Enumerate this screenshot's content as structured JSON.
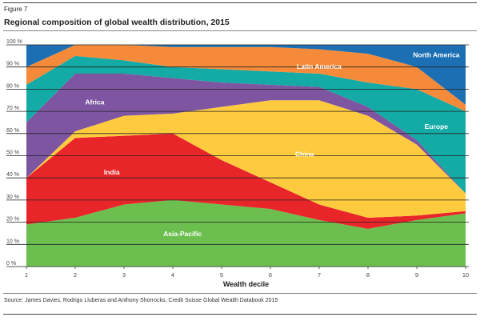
{
  "figure_label": "Figure 7",
  "source": "Source: James Davies, Rodrigo Lluberas and Anthony Shorrocks, Credit Suisse Global Wealth Databook 2015",
  "chart_data": {
    "type": "area",
    "stacked": true,
    "title": "Regional composition of global wealth distribution, 2015",
    "xlabel": "Wealth decile",
    "ylabel": "",
    "x": [
      1,
      2,
      3,
      4,
      5,
      6,
      7,
      8,
      9,
      10
    ],
    "ylim": [
      0,
      100
    ],
    "yticks": [
      "0 %",
      "10 %",
      "20 %",
      "30 %",
      "40 %",
      "50 %",
      "60 %",
      "70 %",
      "80 %",
      "90 %",
      "100 %"
    ],
    "grid": true,
    "series": [
      {
        "name": "Asia-Pacific",
        "color": "#6cbf4f",
        "label_color": "#ffffff",
        "values": [
          19,
          22,
          28,
          30,
          28,
          26,
          21,
          17,
          21,
          24
        ]
      },
      {
        "name": "India",
        "color": "#e8262a",
        "label_color": "#ffffff",
        "values": [
          21,
          36,
          31,
          30,
          20,
          12,
          7,
          5,
          2,
          1
        ]
      },
      {
        "name": "China",
        "color": "#fecb3e",
        "label_color": "#ffffff",
        "values": [
          0,
          3,
          9,
          9,
          24,
          37,
          47,
          46,
          32,
          8
        ]
      },
      {
        "name": "Africa",
        "color": "#7e55a0",
        "label_color": "#ffffff",
        "values": [
          25,
          26,
          19,
          16,
          11,
          7,
          6,
          4,
          2,
          0
        ]
      },
      {
        "name": "Europe",
        "color": "#14aaa5",
        "label_color": "#ffffff",
        "values": [
          17,
          8,
          6,
          5,
          6,
          6,
          6,
          11,
          23,
          37
        ]
      },
      {
        "name": "Latin America",
        "color": "#f58b3a",
        "label_color": "#ffffff",
        "values": [
          8,
          5,
          7,
          9,
          10,
          11,
          11,
          13,
          10,
          3
        ]
      },
      {
        "name": "North America",
        "color": "#1c6fb3",
        "label_color": "#ffffff",
        "values": [
          10,
          0,
          0,
          1,
          1,
          1,
          2,
          4,
          10,
          27
        ]
      }
    ]
  }
}
